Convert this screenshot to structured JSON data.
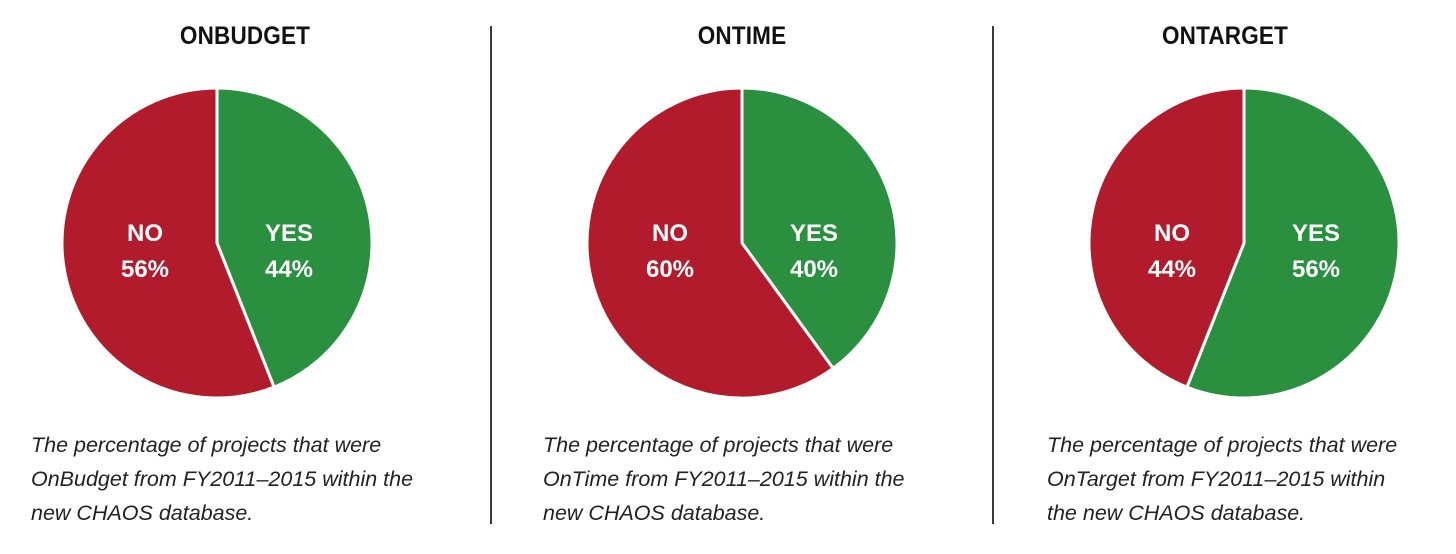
{
  "colors": {
    "yes": "#2a8f3f",
    "no": "#b21b2b",
    "separator": "#ffffff"
  },
  "chart_data": [
    {
      "type": "pie",
      "title": "ONBUDGET",
      "slices": [
        {
          "label": "YES",
          "value": 44,
          "value_label": "44%",
          "color": "#2a8f3f"
        },
        {
          "label": "NO",
          "value": 56,
          "value_label": "56%",
          "color": "#b21b2b"
        }
      ],
      "caption": "The percentage of projects that were\nOnBudget from FY2011–2015 within the\nnew CHAOS database."
    },
    {
      "type": "pie",
      "title": "ONTIME",
      "slices": [
        {
          "label": "YES",
          "value": 40,
          "value_label": "40%",
          "color": "#2a8f3f"
        },
        {
          "label": "NO",
          "value": 60,
          "value_label": "60%",
          "color": "#b21b2b"
        }
      ],
      "caption": "The percentage of projects that were\nOnTime from FY2011–2015 within the\nnew CHAOS database."
    },
    {
      "type": "pie",
      "title": "ONTARGET",
      "slices": [
        {
          "label": "YES",
          "value": 56,
          "value_label": "56%",
          "color": "#2a8f3f"
        },
        {
          "label": "NO",
          "value": 44,
          "value_label": "44%",
          "color": "#b21b2b"
        }
      ],
      "caption": "The percentage of projects that were\nOnTarget from FY2011–2015 within\nthe new CHAOS database."
    }
  ]
}
